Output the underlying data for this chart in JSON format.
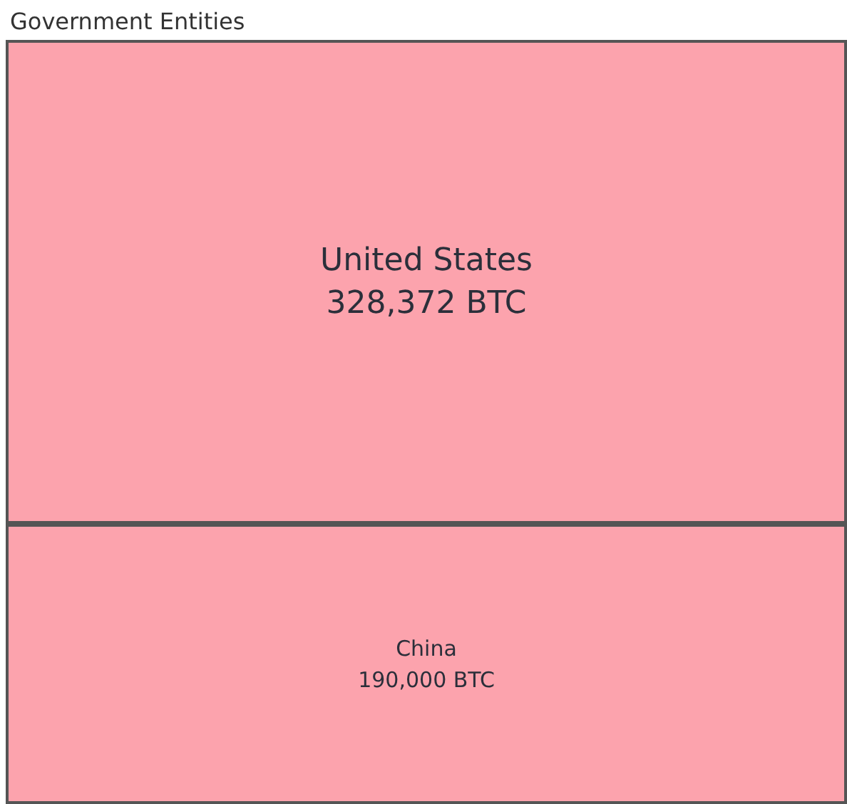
{
  "chart_data": {
    "type": "other",
    "title": "Government Entities",
    "categories": [
      "United States",
      "China"
    ],
    "values": [
      328372,
      190000
    ],
    "value_labels": [
      "328,372 BTC",
      "190,000 BTC"
    ],
    "colors": [
      "#fca3ad",
      "#fca3ad"
    ]
  }
}
